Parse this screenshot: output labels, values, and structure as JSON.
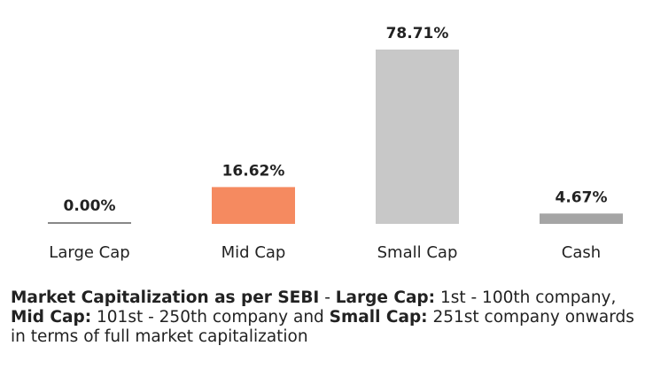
{
  "chart_data": {
    "type": "bar",
    "categories": [
      "Large Cap",
      "Mid Cap",
      "Small Cap",
      "Cash"
    ],
    "values": [
      0.0,
      16.62,
      78.71,
      4.67
    ],
    "data_labels": [
      "0.00%",
      "16.62%",
      "78.71%",
      "4.67%"
    ],
    "colors": [
      "#888888",
      "#f58a60",
      "#c8c8c8",
      "#a5a5a5"
    ],
    "ylim": [
      0,
      78.71
    ],
    "grid": false,
    "legend": "none"
  },
  "footnote": {
    "t1": "Market Capitalization as per SEBI",
    "t2": " - ",
    "t3": "Large Cap:",
    "t4": " 1st - 100th company, ",
    "t5": "Mid Cap:",
    "t6": " 101st - 250th company and ",
    "t7": "Small Cap:",
    "t8": " 251st company onwards in terms of full market capitalization"
  }
}
